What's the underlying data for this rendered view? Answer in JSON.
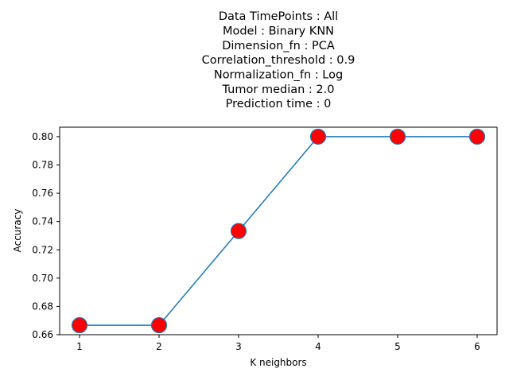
{
  "chart_data": {
    "type": "line",
    "title_lines": [
      "Data TimePoints : All",
      "Model : Binary KNN",
      "Dimension_fn : PCA",
      "Correlation_threshold : 0.9",
      "Normalization_fn : Log",
      "Tumor median : 2.0",
      "Prediction time : 0"
    ],
    "xlabel": "K neighbors",
    "ylabel": "Accuracy",
    "x": [
      1,
      2,
      3,
      4,
      5,
      6
    ],
    "series": [
      {
        "values": [
          0.6667,
          0.6667,
          0.7333,
          0.8,
          0.8,
          0.8
        ]
      }
    ],
    "x_ticks": [
      "1",
      "2",
      "3",
      "4",
      "5",
      "6"
    ],
    "y_ticks": [
      "0.66",
      "0.68",
      "0.70",
      "0.72",
      "0.74",
      "0.76",
      "0.78",
      "0.80"
    ],
    "y_tick_values": [
      0.66,
      0.68,
      0.7,
      0.72,
      0.74,
      0.76,
      0.78,
      0.8
    ],
    "xlim": [
      0.75,
      6.25
    ],
    "ylim": [
      0.66,
      0.8067
    ],
    "grid": false,
    "colors": {
      "line": "#1f77b4",
      "marker_fill": "#ff0000",
      "marker_edge": "#1f77b4"
    }
  }
}
